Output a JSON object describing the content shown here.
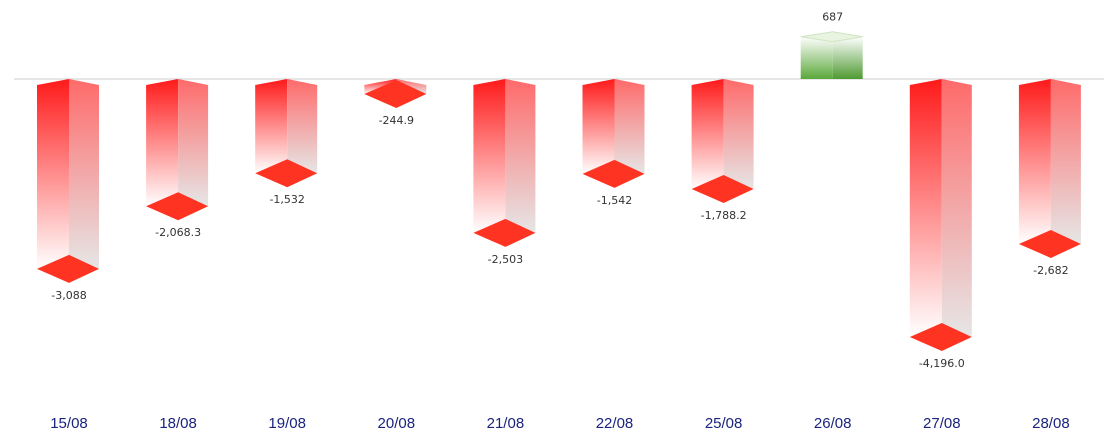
{
  "chart_data": {
    "type": "bar",
    "categories": [
      "15/08",
      "18/08",
      "19/08",
      "20/08",
      "21/08",
      "22/08",
      "25/08",
      "26/08",
      "27/08",
      "28/08"
    ],
    "values": [
      -3088,
      -2068.3,
      -1532,
      -244.9,
      -2503,
      -1542,
      -1788.2,
      687,
      -4196.0,
      -2682
    ],
    "value_labels": [
      "-3,088",
      "-2,068.3",
      "-1,532",
      "-244.9",
      "-2,503",
      "-1,542",
      "-1,788.2",
      "687",
      "-4,196.0",
      "-2,682"
    ],
    "title": "",
    "xlabel": "",
    "ylabel": "",
    "ylim": [
      -4196,
      687
    ],
    "grid": false,
    "legend": "none",
    "colors": {
      "negative_top": "#ff1a1a",
      "negative_bottom": "#ffffff",
      "negative_cap": "#ff3322",
      "negative_side_top": "#ff6a6a",
      "negative_side_bottom": "#e6e6e6",
      "positive_top": "#ffffff",
      "positive_bottom": "#5aa83a",
      "positive_side": "#4f9a33",
      "baseline": "#cccccc",
      "tick_text": "#1a237e",
      "value_text": "#333333"
    }
  }
}
